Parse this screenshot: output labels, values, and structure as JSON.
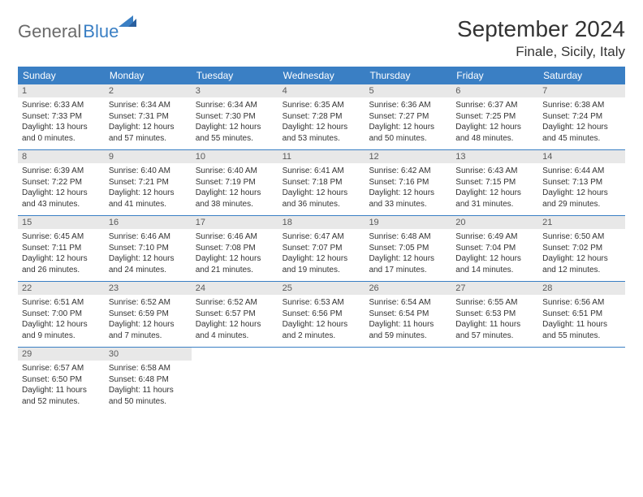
{
  "brand": {
    "part1": "General",
    "part2": "Blue"
  },
  "title": "September 2024",
  "location": "Finale, Sicily, Italy",
  "colors": {
    "header_bg": "#3a7fc4",
    "header_text": "#ffffff",
    "daynum_bg": "#e8e8e8",
    "daynum_text": "#5a5a5a",
    "body_text": "#333333",
    "row_border": "#3a7fc4",
    "logo_gray": "#6a6a6a",
    "logo_blue": "#3a7fc4"
  },
  "typography": {
    "title_fontsize": 28,
    "location_fontsize": 17,
    "weekday_fontsize": 12,
    "daynum_fontsize": 11,
    "body_fontsize": 10,
    "font_family": "Arial"
  },
  "weekdays": [
    "Sunday",
    "Monday",
    "Tuesday",
    "Wednesday",
    "Thursday",
    "Friday",
    "Saturday"
  ],
  "days": [
    {
      "n": "1",
      "sr": "6:33 AM",
      "ss": "7:33 PM",
      "dl": "13 hours and 0 minutes."
    },
    {
      "n": "2",
      "sr": "6:34 AM",
      "ss": "7:31 PM",
      "dl": "12 hours and 57 minutes."
    },
    {
      "n": "3",
      "sr": "6:34 AM",
      "ss": "7:30 PM",
      "dl": "12 hours and 55 minutes."
    },
    {
      "n": "4",
      "sr": "6:35 AM",
      "ss": "7:28 PM",
      "dl": "12 hours and 53 minutes."
    },
    {
      "n": "5",
      "sr": "6:36 AM",
      "ss": "7:27 PM",
      "dl": "12 hours and 50 minutes."
    },
    {
      "n": "6",
      "sr": "6:37 AM",
      "ss": "7:25 PM",
      "dl": "12 hours and 48 minutes."
    },
    {
      "n": "7",
      "sr": "6:38 AM",
      "ss": "7:24 PM",
      "dl": "12 hours and 45 minutes."
    },
    {
      "n": "8",
      "sr": "6:39 AM",
      "ss": "7:22 PM",
      "dl": "12 hours and 43 minutes."
    },
    {
      "n": "9",
      "sr": "6:40 AM",
      "ss": "7:21 PM",
      "dl": "12 hours and 41 minutes."
    },
    {
      "n": "10",
      "sr": "6:40 AM",
      "ss": "7:19 PM",
      "dl": "12 hours and 38 minutes."
    },
    {
      "n": "11",
      "sr": "6:41 AM",
      "ss": "7:18 PM",
      "dl": "12 hours and 36 minutes."
    },
    {
      "n": "12",
      "sr": "6:42 AM",
      "ss": "7:16 PM",
      "dl": "12 hours and 33 minutes."
    },
    {
      "n": "13",
      "sr": "6:43 AM",
      "ss": "7:15 PM",
      "dl": "12 hours and 31 minutes."
    },
    {
      "n": "14",
      "sr": "6:44 AM",
      "ss": "7:13 PM",
      "dl": "12 hours and 29 minutes."
    },
    {
      "n": "15",
      "sr": "6:45 AM",
      "ss": "7:11 PM",
      "dl": "12 hours and 26 minutes."
    },
    {
      "n": "16",
      "sr": "6:46 AM",
      "ss": "7:10 PM",
      "dl": "12 hours and 24 minutes."
    },
    {
      "n": "17",
      "sr": "6:46 AM",
      "ss": "7:08 PM",
      "dl": "12 hours and 21 minutes."
    },
    {
      "n": "18",
      "sr": "6:47 AM",
      "ss": "7:07 PM",
      "dl": "12 hours and 19 minutes."
    },
    {
      "n": "19",
      "sr": "6:48 AM",
      "ss": "7:05 PM",
      "dl": "12 hours and 17 minutes."
    },
    {
      "n": "20",
      "sr": "6:49 AM",
      "ss": "7:04 PM",
      "dl": "12 hours and 14 minutes."
    },
    {
      "n": "21",
      "sr": "6:50 AM",
      "ss": "7:02 PM",
      "dl": "12 hours and 12 minutes."
    },
    {
      "n": "22",
      "sr": "6:51 AM",
      "ss": "7:00 PM",
      "dl": "12 hours and 9 minutes."
    },
    {
      "n": "23",
      "sr": "6:52 AM",
      "ss": "6:59 PM",
      "dl": "12 hours and 7 minutes."
    },
    {
      "n": "24",
      "sr": "6:52 AM",
      "ss": "6:57 PM",
      "dl": "12 hours and 4 minutes."
    },
    {
      "n": "25",
      "sr": "6:53 AM",
      "ss": "6:56 PM",
      "dl": "12 hours and 2 minutes."
    },
    {
      "n": "26",
      "sr": "6:54 AM",
      "ss": "6:54 PM",
      "dl": "11 hours and 59 minutes."
    },
    {
      "n": "27",
      "sr": "6:55 AM",
      "ss": "6:53 PM",
      "dl": "11 hours and 57 minutes."
    },
    {
      "n": "28",
      "sr": "6:56 AM",
      "ss": "6:51 PM",
      "dl": "11 hours and 55 minutes."
    },
    {
      "n": "29",
      "sr": "6:57 AM",
      "ss": "6:50 PM",
      "dl": "11 hours and 52 minutes."
    },
    {
      "n": "30",
      "sr": "6:58 AM",
      "ss": "6:48 PM",
      "dl": "11 hours and 50 minutes."
    }
  ],
  "labels": {
    "sunrise": "Sunrise: ",
    "sunset": "Sunset: ",
    "daylight": "Daylight: "
  },
  "layout": {
    "columns": 7,
    "start_weekday": 0,
    "total_days": 30
  }
}
